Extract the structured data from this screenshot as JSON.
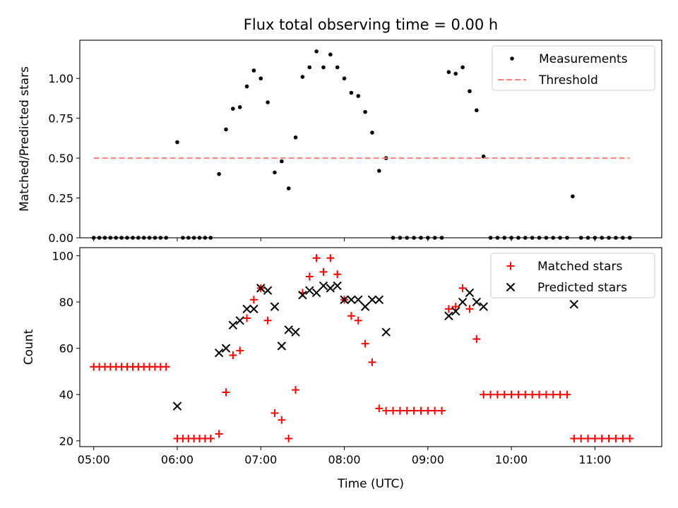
{
  "figure": {
    "title": "Flux total observing time = 0.00 h",
    "xlabel": "Time (UTC)"
  },
  "colors": {
    "measurement": "#000000",
    "threshold": "#ff7f7f",
    "matched": "#ff0000",
    "predicted": "#000000"
  },
  "chart_data": [
    {
      "type": "scatter",
      "subplot": "top",
      "ylabel": "Matched/Predicted stars",
      "xlim": [
        "04:50",
        "11:48"
      ],
      "ylim": [
        0,
        1.24
      ],
      "yticks": [
        0.0,
        0.25,
        0.5,
        0.75,
        1.0
      ],
      "ytick_labels": [
        "0.00",
        "0.25",
        "0.50",
        "0.75",
        "1.00"
      ],
      "legend_position": "top-right",
      "grid": false,
      "series": [
        {
          "name": "Measurements",
          "marker": "dot",
          "points": [
            [
              "05:00",
              0
            ],
            [
              "05:04",
              0
            ],
            [
              "05:08",
              0
            ],
            [
              "05:12",
              0
            ],
            [
              "05:16",
              0
            ],
            [
              "05:20",
              0
            ],
            [
              "05:24",
              0
            ],
            [
              "05:28",
              0
            ],
            [
              "05:32",
              0
            ],
            [
              "05:36",
              0
            ],
            [
              "05:40",
              0
            ],
            [
              "05:44",
              0
            ],
            [
              "05:48",
              0
            ],
            [
              "05:52",
              0
            ],
            [
              "06:00",
              0.6
            ],
            [
              "06:04",
              0
            ],
            [
              "06:08",
              0
            ],
            [
              "06:12",
              0
            ],
            [
              "06:16",
              0
            ],
            [
              "06:20",
              0
            ],
            [
              "06:24",
              0
            ],
            [
              "06:30",
              0.4
            ],
            [
              "06:35",
              0.68
            ],
            [
              "06:40",
              0.81
            ],
            [
              "06:45",
              0.82
            ],
            [
              "06:50",
              0.95
            ],
            [
              "06:55",
              1.05
            ],
            [
              "07:00",
              1.0
            ],
            [
              "07:05",
              0.85
            ],
            [
              "07:10",
              0.41
            ],
            [
              "07:15",
              0.48
            ],
            [
              "07:20",
              0.31
            ],
            [
              "07:25",
              0.63
            ],
            [
              "07:30",
              1.01
            ],
            [
              "07:35",
              1.07
            ],
            [
              "07:40",
              1.17
            ],
            [
              "07:45",
              1.07
            ],
            [
              "07:50",
              1.15
            ],
            [
              "07:55",
              1.07
            ],
            [
              "08:00",
              1.0
            ],
            [
              "08:05",
              0.91
            ],
            [
              "08:10",
              0.89
            ],
            [
              "08:15",
              0.79
            ],
            [
              "08:20",
              0.66
            ],
            [
              "08:25",
              0.42
            ],
            [
              "08:30",
              0.5
            ],
            [
              "08:35",
              0
            ],
            [
              "08:40",
              0
            ],
            [
              "08:45",
              0
            ],
            [
              "08:50",
              0
            ],
            [
              "08:55",
              0
            ],
            [
              "09:00",
              0
            ],
            [
              "09:05",
              0
            ],
            [
              "09:10",
              0
            ],
            [
              "09:15",
              1.04
            ],
            [
              "09:20",
              1.03
            ],
            [
              "09:25",
              1.07
            ],
            [
              "09:30",
              0.92
            ],
            [
              "09:35",
              0.8
            ],
            [
              "09:40",
              0.51
            ],
            [
              "09:45",
              0
            ],
            [
              "09:50",
              0
            ],
            [
              "09:55",
              0
            ],
            [
              "10:00",
              0
            ],
            [
              "10:05",
              0
            ],
            [
              "10:10",
              0
            ],
            [
              "10:15",
              0
            ],
            [
              "10:20",
              0
            ],
            [
              "10:25",
              0
            ],
            [
              "10:30",
              0
            ],
            [
              "10:35",
              0
            ],
            [
              "10:40",
              0
            ],
            [
              "10:44",
              0.26
            ],
            [
              "10:50",
              0
            ],
            [
              "10:55",
              0
            ],
            [
              "11:00",
              0
            ],
            [
              "11:05",
              0
            ],
            [
              "11:10",
              0
            ],
            [
              "11:15",
              0
            ],
            [
              "11:20",
              0
            ],
            [
              "11:25",
              0
            ]
          ]
        },
        {
          "name": "Threshold",
          "line": "dashed",
          "points": [
            [
              "05:00",
              0.5
            ],
            [
              "11:25",
              0.5
            ]
          ]
        }
      ]
    },
    {
      "type": "scatter",
      "subplot": "bottom",
      "ylabel": "Count",
      "xlim": [
        "04:50",
        "11:48"
      ],
      "ylim": [
        17.5,
        103.5
      ],
      "yticks": [
        20,
        40,
        60,
        80,
        100
      ],
      "ytick_labels": [
        "20",
        "40",
        "60",
        "80",
        "100"
      ],
      "xticks": [
        "05:00",
        "06:00",
        "07:00",
        "08:00",
        "09:00",
        "10:00",
        "11:00"
      ],
      "xtick_labels": [
        "05:00",
        "06:00",
        "07:00",
        "08:00",
        "09:00",
        "10:00",
        "11:00"
      ],
      "legend_position": "top-right",
      "grid": false,
      "series": [
        {
          "name": "Matched stars",
          "marker": "plus",
          "points": [
            [
              "05:00",
              52
            ],
            [
              "05:04",
              52
            ],
            [
              "05:08",
              52
            ],
            [
              "05:12",
              52
            ],
            [
              "05:16",
              52
            ],
            [
              "05:20",
              52
            ],
            [
              "05:24",
              52
            ],
            [
              "05:28",
              52
            ],
            [
              "05:32",
              52
            ],
            [
              "05:36",
              52
            ],
            [
              "05:40",
              52
            ],
            [
              "05:44",
              52
            ],
            [
              "05:48",
              52
            ],
            [
              "05:52",
              52
            ],
            [
              "06:00",
              21
            ],
            [
              "06:04",
              21
            ],
            [
              "06:08",
              21
            ],
            [
              "06:12",
              21
            ],
            [
              "06:16",
              21
            ],
            [
              "06:20",
              21
            ],
            [
              "06:24",
              21
            ],
            [
              "06:30",
              23
            ],
            [
              "06:35",
              41
            ],
            [
              "06:40",
              57
            ],
            [
              "06:45",
              59
            ],
            [
              "06:50",
              73
            ],
            [
              "06:55",
              81
            ],
            [
              "07:00",
              86
            ],
            [
              "07:05",
              72
            ],
            [
              "07:10",
              32
            ],
            [
              "07:15",
              29
            ],
            [
              "07:20",
              21
            ],
            [
              "07:25",
              42
            ],
            [
              "07:30",
              84
            ],
            [
              "07:35",
              91
            ],
            [
              "07:40",
              99
            ],
            [
              "07:45",
              93
            ],
            [
              "07:50",
              99
            ],
            [
              "07:55",
              92
            ],
            [
              "08:00",
              81
            ],
            [
              "08:05",
              74
            ],
            [
              "08:10",
              72
            ],
            [
              "08:15",
              62
            ],
            [
              "08:20",
              54
            ],
            [
              "08:25",
              34
            ],
            [
              "08:30",
              33
            ],
            [
              "08:35",
              33
            ],
            [
              "08:40",
              33
            ],
            [
              "08:45",
              33
            ],
            [
              "08:50",
              33
            ],
            [
              "08:55",
              33
            ],
            [
              "09:00",
              33
            ],
            [
              "09:05",
              33
            ],
            [
              "09:10",
              33
            ],
            [
              "09:15",
              77
            ],
            [
              "09:20",
              78
            ],
            [
              "09:25",
              86
            ],
            [
              "09:30",
              77
            ],
            [
              "09:35",
              64
            ],
            [
              "09:40",
              40
            ],
            [
              "09:45",
              40
            ],
            [
              "09:50",
              40
            ],
            [
              "09:55",
              40
            ],
            [
              "10:00",
              40
            ],
            [
              "10:05",
              40
            ],
            [
              "10:10",
              40
            ],
            [
              "10:15",
              40
            ],
            [
              "10:20",
              40
            ],
            [
              "10:25",
              40
            ],
            [
              "10:30",
              40
            ],
            [
              "10:35",
              40
            ],
            [
              "10:40",
              40
            ],
            [
              "10:45",
              21
            ],
            [
              "10:50",
              21
            ],
            [
              "10:55",
              21
            ],
            [
              "11:00",
              21
            ],
            [
              "11:05",
              21
            ],
            [
              "11:10",
              21
            ],
            [
              "11:15",
              21
            ],
            [
              "11:20",
              21
            ],
            [
              "11:25",
              21
            ]
          ]
        },
        {
          "name": "Predicted stars",
          "marker": "x",
          "points": [
            [
              "06:00",
              35
            ],
            [
              "06:30",
              58
            ],
            [
              "06:35",
              60
            ],
            [
              "06:40",
              70
            ],
            [
              "06:45",
              72
            ],
            [
              "06:50",
              77
            ],
            [
              "06:55",
              77
            ],
            [
              "07:00",
              86
            ],
            [
              "07:05",
              85
            ],
            [
              "07:10",
              78
            ],
            [
              "07:15",
              61
            ],
            [
              "07:20",
              68
            ],
            [
              "07:25",
              67
            ],
            [
              "07:30",
              83
            ],
            [
              "07:35",
              85
            ],
            [
              "07:40",
              84
            ],
            [
              "07:45",
              87
            ],
            [
              "07:50",
              86
            ],
            [
              "07:55",
              87
            ],
            [
              "08:00",
              81
            ],
            [
              "08:05",
              81
            ],
            [
              "08:10",
              81
            ],
            [
              "08:15",
              78
            ],
            [
              "08:20",
              81
            ],
            [
              "08:25",
              81
            ],
            [
              "08:30",
              67
            ],
            [
              "09:15",
              74
            ],
            [
              "09:20",
              76
            ],
            [
              "09:25",
              80
            ],
            [
              "09:30",
              84
            ],
            [
              "09:35",
              80
            ],
            [
              "09:40",
              78
            ],
            [
              "10:45",
              79
            ]
          ]
        }
      ]
    }
  ]
}
